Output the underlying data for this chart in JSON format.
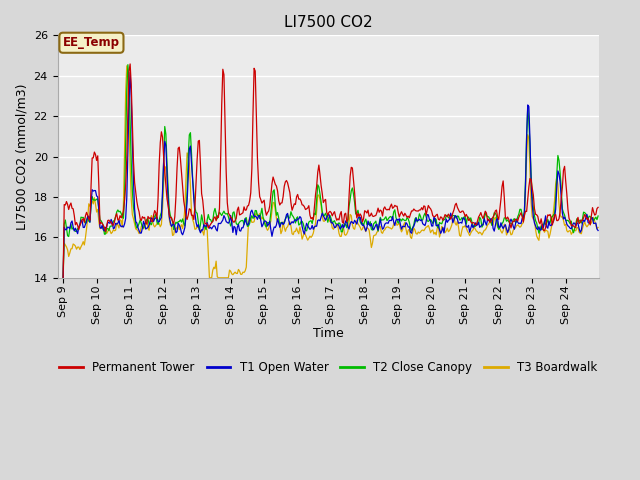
{
  "title": "LI7500 CO2",
  "xlabel": "Time",
  "ylabel": "LI7500 CO2 (mmol/m3)",
  "ylim": [
    14,
    26
  ],
  "yticks": [
    14,
    16,
    18,
    20,
    22,
    24,
    26
  ],
  "xtick_labels": [
    "Sep 9",
    "Sep 10",
    "Sep 11",
    "Sep 12",
    "Sep 13",
    "Sep 14",
    "Sep 15",
    "Sep 16",
    "Sep 17",
    "Sep 18",
    "Sep 19",
    "Sep 20",
    "Sep 21",
    "Sep 22",
    "Sep 23",
    "Sep 24"
  ],
  "colors": {
    "permanent_tower": "#cc0000",
    "t1_open_water": "#0000cc",
    "t2_close_canopy": "#00bb00",
    "t3_boardwalk": "#ddaa00"
  },
  "legend_labels": [
    "Permanent Tower",
    "T1 Open Water",
    "T2 Close Canopy",
    "T3 Boardwalk"
  ],
  "annotation_text": "EE_Temp",
  "fig_bg_color": "#d8d8d8",
  "plot_bg_color": "#ebebeb",
  "grid_color": "#ffffff",
  "title_fontsize": 11,
  "axis_label_fontsize": 9,
  "tick_fontsize": 8
}
